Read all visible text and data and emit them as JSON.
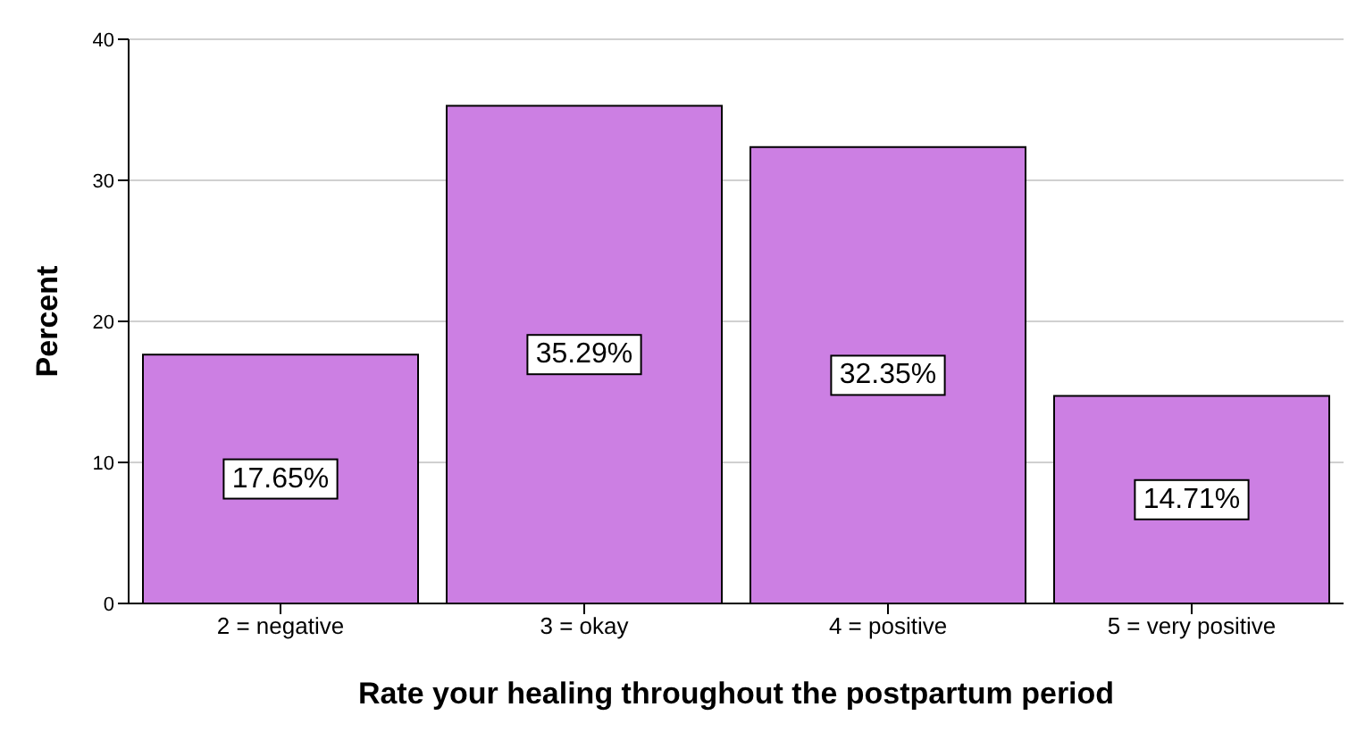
{
  "chart_data": {
    "type": "bar",
    "xlabel": "Rate your healing throughout the postpartum period",
    "ylabel": "Percent",
    "categories": [
      "2 = negative",
      "3 = okay",
      "4 = positive",
      "5 = very positive"
    ],
    "values": [
      17.65,
      35.29,
      32.35,
      14.71
    ],
    "value_labels": [
      "17.65%",
      "35.29%",
      "32.35%",
      "14.71%"
    ],
    "color": "#cc7fe3",
    "ylim": [
      0,
      40
    ],
    "yticks": [
      0,
      10,
      20,
      30,
      40
    ],
    "grid": "y"
  }
}
